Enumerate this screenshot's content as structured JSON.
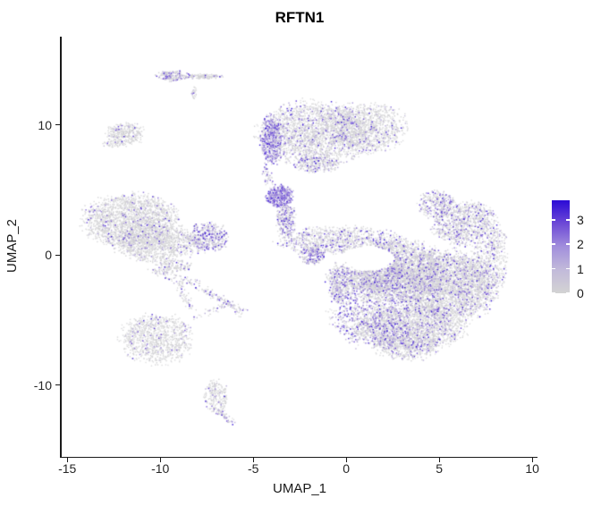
{
  "chart_data": {
    "type": "scatter",
    "title": "RFTN1",
    "xlabel": "UMAP_1",
    "ylabel": "UMAP_2",
    "xlim": [
      -15.3,
      10.3
    ],
    "ylim": [
      -15.5,
      16.7
    ],
    "x_ticks": [
      -15,
      -10,
      -5,
      0,
      5,
      10
    ],
    "y_ticks": [
      10,
      0,
      -10
    ],
    "grid": false,
    "background": "#ffffff",
    "axis_color": "#1a1a1a",
    "point_gray_color": "#d4d4d4",
    "colorbar": {
      "values": [
        0,
        1,
        2,
        3
      ],
      "vmax": 3.8,
      "stops_bottom_to_top": [
        "#d3d3d3",
        "#c2bada",
        "#a28fdc",
        "#6d49d6",
        "#2b0bd6"
      ]
    },
    "clusters": [
      {
        "name": "top-strip-left",
        "type": "blob",
        "cx": -9.4,
        "cy": 13.8,
        "rx": 0.85,
        "ry": 0.38,
        "n": 200,
        "frac": 0.3
      },
      {
        "name": "top-strip-tail",
        "type": "blob",
        "cx": -7.7,
        "cy": 13.75,
        "rx": 0.95,
        "ry": 0.18,
        "n": 140,
        "frac": 0.08
      },
      {
        "name": "top-strip-drip",
        "type": "blob",
        "cx": -8.2,
        "cy": 12.5,
        "rx": 0.14,
        "ry": 0.45,
        "n": 26,
        "frac": 0.2
      },
      {
        "name": "left-top-small",
        "type": "blob",
        "cx": -11.9,
        "cy": 9.35,
        "rx": 0.95,
        "ry": 0.85,
        "n": 340,
        "frac": 0.08
      },
      {
        "name": "left-top-small-tail",
        "type": "blob",
        "cx": -12.7,
        "cy": 8.55,
        "rx": 0.5,
        "ry": 0.26,
        "n": 40,
        "frac": 0.12
      },
      {
        "name": "top-mid-a",
        "type": "blob",
        "cx": -1.6,
        "cy": 9.4,
        "rx": 2.95,
        "ry": 2.35,
        "n": 2300,
        "frac": 0.2
      },
      {
        "name": "top-mid-b",
        "type": "blob",
        "cx": 1.1,
        "cy": 9.8,
        "rx": 2.0,
        "ry": 1.8,
        "n": 1000,
        "frac": 0.15
      },
      {
        "name": "top-mid-left-hot",
        "type": "blob",
        "cx": -4.05,
        "cy": 8.9,
        "rx": 0.55,
        "ry": 1.85,
        "n": 450,
        "frac": 0.72,
        "tmin": 0.25
      },
      {
        "name": "top-mid-bottom",
        "type": "blob",
        "cx": -1.6,
        "cy": 7.0,
        "rx": 1.3,
        "ry": 0.6,
        "n": 240,
        "frac": 0.3
      },
      {
        "name": "streak-head",
        "type": "blob",
        "cx": -3.6,
        "cy": 4.55,
        "rx": 0.68,
        "ry": 0.8,
        "n": 420,
        "frac": 0.82,
        "tmin": 0.3
      },
      {
        "name": "streak-neck",
        "type": "seg",
        "x1": -4.15,
        "y1": 5.5,
        "x2": -4.35,
        "y2": 6.7,
        "w": 0.15,
        "n": 40,
        "frac": 0.6
      },
      {
        "name": "streak-tail",
        "type": "blob",
        "cx": -3.25,
        "cy": 2.7,
        "rx": 0.5,
        "ry": 1.25,
        "n": 270,
        "frac": 0.5
      },
      {
        "name": "center-band",
        "type": "blob",
        "cx": -0.3,
        "cy": 1.15,
        "rx": 3.2,
        "ry": 1.0,
        "n": 1000,
        "frac": 0.27,
        "hole": true
      },
      {
        "name": "center-knot",
        "type": "blob",
        "cx": -1.9,
        "cy": 0.0,
        "rx": 0.65,
        "ry": 0.7,
        "n": 220,
        "frac": 0.45
      },
      {
        "name": "center-strand",
        "type": "blob",
        "cx": -0.55,
        "cy": -2.3,
        "rx": 0.3,
        "ry": 1.5,
        "n": 140,
        "frac": 0.45
      },
      {
        "name": "left-big-a",
        "type": "blob",
        "cx": -11.6,
        "cy": 2.7,
        "rx": 2.45,
        "ry": 1.9,
        "n": 2000,
        "frac": 0.1
      },
      {
        "name": "left-big-b",
        "type": "blob",
        "cx": -10.2,
        "cy": 0.95,
        "rx": 2.2,
        "ry": 1.35,
        "n": 1100,
        "frac": 0.12
      },
      {
        "name": "left-pocket",
        "type": "blob",
        "cx": -7.5,
        "cy": 1.4,
        "rx": 1.05,
        "ry": 1.1,
        "n": 450,
        "frac": 0.5
      },
      {
        "name": "left-big-tail",
        "type": "blob",
        "cx": -9.3,
        "cy": -0.8,
        "rx": 0.95,
        "ry": 0.5,
        "n": 150,
        "frac": 0.2
      },
      {
        "name": "strand-1",
        "type": "seg",
        "x1": -10.6,
        "y1": -1.1,
        "x2": -8.0,
        "y2": -2.2,
        "w": 0.18,
        "n": 90,
        "frac": 0.3
      },
      {
        "name": "strand-2",
        "type": "seg",
        "x1": -8.0,
        "y1": -2.3,
        "x2": -5.5,
        "y2": -4.5,
        "w": 0.18,
        "n": 110,
        "frac": 0.35
      },
      {
        "name": "strand-3",
        "type": "seg",
        "x1": -9.1,
        "y1": -2.0,
        "x2": -8.3,
        "y2": -4.3,
        "w": 0.15,
        "n": 60,
        "frac": 0.2
      },
      {
        "name": "strand-4",
        "type": "seg",
        "x1": -8.3,
        "y1": -4.9,
        "x2": -6.1,
        "y2": -3.5,
        "w": 0.15,
        "n": 45,
        "frac": 0.3
      },
      {
        "name": "bottom-left",
        "type": "blob",
        "cx": -10.2,
        "cy": -6.4,
        "rx": 1.85,
        "ry": 1.8,
        "n": 1000,
        "frac": 0.09
      },
      {
        "name": "comma-head",
        "type": "blob",
        "cx": -7.05,
        "cy": -10.8,
        "rx": 0.62,
        "ry": 1.15,
        "n": 220,
        "frac": 0.13
      },
      {
        "name": "comma-tail",
        "type": "seg",
        "x1": -6.9,
        "y1": -11.9,
        "x2": -6.2,
        "y2": -12.9,
        "w": 0.16,
        "n": 60,
        "frac": 0.35
      },
      {
        "name": "mid-small",
        "type": "blob",
        "cx": 1.35,
        "cy": -2.0,
        "rx": 1.5,
        "ry": 0.75,
        "n": 420,
        "frac": 0.18
      },
      {
        "name": "mid-small-fringe",
        "type": "blob",
        "cx": 2.6,
        "cy": -1.2,
        "rx": 0.45,
        "ry": 0.6,
        "n": 110,
        "frac": 0.5
      },
      {
        "name": "right-a",
        "type": "blob",
        "cx": 2.8,
        "cy": -1.2,
        "rx": 2.5,
        "ry": 2.2,
        "n": 2800,
        "frac": 0.2,
        "hole": true
      },
      {
        "name": "right-b",
        "type": "blob",
        "cx": 5.5,
        "cy": -2.4,
        "rx": 2.4,
        "ry": 2.6,
        "n": 3000,
        "frac": 0.18,
        "hole": true
      },
      {
        "name": "right-c",
        "type": "blob",
        "cx": 3.4,
        "cy": -5.6,
        "rx": 2.8,
        "ry": 1.7,
        "n": 2000,
        "frac": 0.2
      },
      {
        "name": "right-bottom",
        "type": "blob",
        "cx": 3.2,
        "cy": -7.0,
        "rx": 1.7,
        "ry": 1.0,
        "n": 450,
        "frac": 0.25
      },
      {
        "name": "right-top-lobe",
        "type": "blob",
        "cx": 6.3,
        "cy": 2.5,
        "rx": 1.7,
        "ry": 1.6,
        "n": 950,
        "frac": 0.28
      },
      {
        "name": "right-tongue",
        "type": "blob",
        "cx": 4.8,
        "cy": 3.9,
        "rx": 0.9,
        "ry": 1.0,
        "n": 300,
        "frac": 0.35
      },
      {
        "name": "right-hot-bl",
        "type": "blob",
        "cx": 1.2,
        "cy": -4.5,
        "rx": 2.0,
        "ry": 2.4,
        "n": 900,
        "frac": 0.45,
        "tmin": 0.22
      },
      {
        "name": "right-left-tip",
        "type": "blob",
        "cx": -0.3,
        "cy": -2.0,
        "rx": 0.8,
        "ry": 1.4,
        "n": 280,
        "frac": 0.45
      },
      {
        "name": "right-edge",
        "type": "blob",
        "cx": 7.6,
        "cy": -0.8,
        "rx": 1.0,
        "ry": 2.0,
        "n": 420,
        "frac": 0.22
      },
      {
        "name": "right-edge-bump",
        "type": "blob",
        "cx": 8.1,
        "cy": 1.2,
        "rx": 0.5,
        "ry": 0.8,
        "n": 90,
        "frac": 0.25
      }
    ],
    "hole_region": {
      "cx": 1.1,
      "cy": -0.25,
      "rx": 1.45,
      "ry": 0.95
    }
  }
}
